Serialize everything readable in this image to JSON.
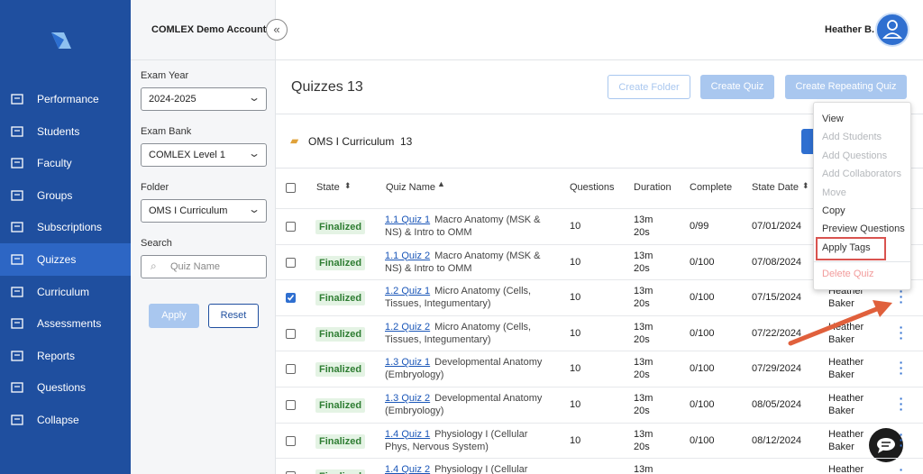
{
  "sidebar": {
    "nav": [
      {
        "label": "Performance"
      },
      {
        "label": "Students"
      },
      {
        "label": "Faculty"
      },
      {
        "label": "Groups"
      },
      {
        "label": "Subscriptions"
      },
      {
        "label": "Quizzes",
        "active": true
      },
      {
        "label": "Curriculum"
      },
      {
        "label": "Assessments"
      },
      {
        "label": "Reports"
      },
      {
        "label": "Questions"
      },
      {
        "label": "Collapse"
      }
    ]
  },
  "account": "COMLEX Demo Account",
  "user": "Heather B.",
  "filters": {
    "fields": [
      {
        "label": "Exam Year",
        "value": "2024-2025"
      },
      {
        "label": "Exam Bank",
        "value": "COMLEX Level 1"
      },
      {
        "label": "Folder",
        "value": "OMS I Curriculum"
      },
      {
        "label": "Search",
        "placeholder": "Quiz Name"
      }
    ],
    "apply": "Apply",
    "reset": "Reset"
  },
  "page": {
    "title": "Quizzes",
    "count": 13,
    "buttons": [
      "Create Folder",
      "Create Quiz",
      "Create Repeating Quiz"
    ]
  },
  "folder": {
    "name": "OMS I Curriculum",
    "count": 13
  },
  "table": {
    "columns": [
      "State",
      "Quiz Name",
      "Questions",
      "Duration",
      "Complete",
      "State Date"
    ],
    "rows": [
      {
        "checked": false,
        "state": "Finalized",
        "code": "1.1 Quiz 1",
        "name": "Macro Anatomy (MSK & NS) & Intro to OMM",
        "questions": 10,
        "duration": "13m 20s",
        "complete": "0/99",
        "date": "07/01/2024"
      },
      {
        "checked": false,
        "state": "Finalized",
        "code": "1.1 Quiz 2",
        "name": "Macro Anatomy (MSK & NS) & Intro to OMM",
        "questions": 10,
        "duration": "13m 20s",
        "complete": "0/100",
        "date": "07/08/2024"
      },
      {
        "checked": true,
        "state": "Finalized",
        "code": "1.2 Quiz 1",
        "name": "Micro Anatomy (Cells, Tissues, Integumentary)",
        "questions": 10,
        "duration": "13m 20s",
        "complete": "0/100",
        "date": "07/15/2024",
        "owner": "Heather Baker"
      },
      {
        "checked": false,
        "state": "Finalized",
        "code": "1.2 Quiz 2",
        "name": "Micro Anatomy (Cells, Tissues, Integumentary)",
        "questions": 10,
        "duration": "13m 20s",
        "complete": "0/100",
        "date": "07/22/2024",
        "owner": "Heather Baker"
      },
      {
        "checked": false,
        "state": "Finalized",
        "code": "1.3 Quiz 1",
        "name": "Developmental Anatomy (Embryology)",
        "questions": 10,
        "duration": "13m 20s",
        "complete": "0/100",
        "date": "07/29/2024",
        "owner": "Heather Baker"
      },
      {
        "checked": false,
        "state": "Finalized",
        "code": "1.3 Quiz 2",
        "name": "Developmental Anatomy (Embryology)",
        "questions": 10,
        "duration": "13m 20s",
        "complete": "0/100",
        "date": "08/05/2024",
        "owner": "Heather Baker"
      },
      {
        "checked": false,
        "state": "Finalized",
        "code": "1.4 Quiz 1",
        "name": "Physiology I (Cellular Phys, Nervous System)",
        "questions": 10,
        "duration": "13m 20s",
        "complete": "0/100",
        "date": "08/12/2024",
        "owner": "Heather Baker"
      },
      {
        "checked": false,
        "state": "Finalized",
        "code": "1.4 Quiz 2",
        "name": "Physiology I (Cellular",
        "duration": "13m",
        "owner": "Heather"
      }
    ]
  },
  "menu": {
    "items": [
      {
        "label": "View",
        "enabled": true
      },
      {
        "label": "Add Students",
        "enabled": false
      },
      {
        "label": "Add Questions",
        "enabled": false
      },
      {
        "label": "Add Collaborators",
        "enabled": false
      },
      {
        "label": "Move",
        "enabled": false
      },
      {
        "label": "Copy",
        "enabled": true
      },
      {
        "label": "Preview Questions",
        "enabled": true
      },
      {
        "label": "Apply Tags",
        "enabled": true,
        "highlight": true
      },
      {
        "label": "Delete Quiz",
        "enabled": true,
        "danger": true
      }
    ]
  }
}
